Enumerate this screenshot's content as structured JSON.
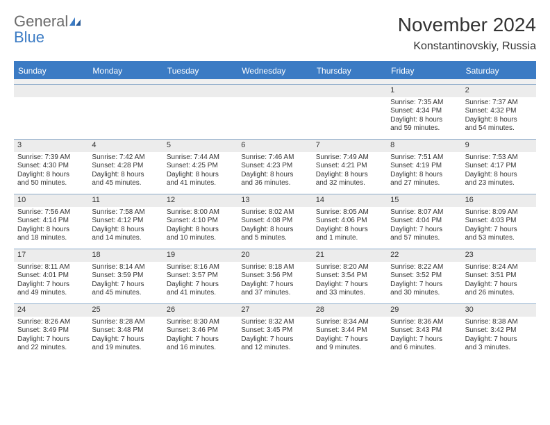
{
  "brand": {
    "text_gray": "General",
    "text_blue": "Blue"
  },
  "header": {
    "month_title": "November 2024",
    "location": "Konstantinovskiy, Russia"
  },
  "colors": {
    "header_bg": "#3b7bc4",
    "row_rule": "#8aa9c9",
    "cell_num_bg": "#ececec",
    "text": "#333333",
    "logo_gray": "#6b6b6b",
    "logo_blue": "#3b7bc4",
    "background": "#ffffff"
  },
  "typography": {
    "month_title_fontsize": 28,
    "location_fontsize": 16,
    "day_header_fontsize": 12,
    "cell_fontsize": 10,
    "font_family": "Arial"
  },
  "day_names": [
    "Sunday",
    "Monday",
    "Tuesday",
    "Wednesday",
    "Thursday",
    "Friday",
    "Saturday"
  ],
  "weeks": [
    [
      {
        "empty": true
      },
      {
        "empty": true
      },
      {
        "empty": true
      },
      {
        "empty": true
      },
      {
        "empty": true
      },
      {
        "num": "1",
        "sunrise": "Sunrise: 7:35 AM",
        "sunset": "Sunset: 4:34 PM",
        "day1": "Daylight: 8 hours",
        "day2": "and 59 minutes."
      },
      {
        "num": "2",
        "sunrise": "Sunrise: 7:37 AM",
        "sunset": "Sunset: 4:32 PM",
        "day1": "Daylight: 8 hours",
        "day2": "and 54 minutes."
      }
    ],
    [
      {
        "num": "3",
        "sunrise": "Sunrise: 7:39 AM",
        "sunset": "Sunset: 4:30 PM",
        "day1": "Daylight: 8 hours",
        "day2": "and 50 minutes."
      },
      {
        "num": "4",
        "sunrise": "Sunrise: 7:42 AM",
        "sunset": "Sunset: 4:28 PM",
        "day1": "Daylight: 8 hours",
        "day2": "and 45 minutes."
      },
      {
        "num": "5",
        "sunrise": "Sunrise: 7:44 AM",
        "sunset": "Sunset: 4:25 PM",
        "day1": "Daylight: 8 hours",
        "day2": "and 41 minutes."
      },
      {
        "num": "6",
        "sunrise": "Sunrise: 7:46 AM",
        "sunset": "Sunset: 4:23 PM",
        "day1": "Daylight: 8 hours",
        "day2": "and 36 minutes."
      },
      {
        "num": "7",
        "sunrise": "Sunrise: 7:49 AM",
        "sunset": "Sunset: 4:21 PM",
        "day1": "Daylight: 8 hours",
        "day2": "and 32 minutes."
      },
      {
        "num": "8",
        "sunrise": "Sunrise: 7:51 AM",
        "sunset": "Sunset: 4:19 PM",
        "day1": "Daylight: 8 hours",
        "day2": "and 27 minutes."
      },
      {
        "num": "9",
        "sunrise": "Sunrise: 7:53 AM",
        "sunset": "Sunset: 4:17 PM",
        "day1": "Daylight: 8 hours",
        "day2": "and 23 minutes."
      }
    ],
    [
      {
        "num": "10",
        "sunrise": "Sunrise: 7:56 AM",
        "sunset": "Sunset: 4:14 PM",
        "day1": "Daylight: 8 hours",
        "day2": "and 18 minutes."
      },
      {
        "num": "11",
        "sunrise": "Sunrise: 7:58 AM",
        "sunset": "Sunset: 4:12 PM",
        "day1": "Daylight: 8 hours",
        "day2": "and 14 minutes."
      },
      {
        "num": "12",
        "sunrise": "Sunrise: 8:00 AM",
        "sunset": "Sunset: 4:10 PM",
        "day1": "Daylight: 8 hours",
        "day2": "and 10 minutes."
      },
      {
        "num": "13",
        "sunrise": "Sunrise: 8:02 AM",
        "sunset": "Sunset: 4:08 PM",
        "day1": "Daylight: 8 hours",
        "day2": "and 5 minutes."
      },
      {
        "num": "14",
        "sunrise": "Sunrise: 8:05 AM",
        "sunset": "Sunset: 4:06 PM",
        "day1": "Daylight: 8 hours",
        "day2": "and 1 minute."
      },
      {
        "num": "15",
        "sunrise": "Sunrise: 8:07 AM",
        "sunset": "Sunset: 4:04 PM",
        "day1": "Daylight: 7 hours",
        "day2": "and 57 minutes."
      },
      {
        "num": "16",
        "sunrise": "Sunrise: 8:09 AM",
        "sunset": "Sunset: 4:03 PM",
        "day1": "Daylight: 7 hours",
        "day2": "and 53 minutes."
      }
    ],
    [
      {
        "num": "17",
        "sunrise": "Sunrise: 8:11 AM",
        "sunset": "Sunset: 4:01 PM",
        "day1": "Daylight: 7 hours",
        "day2": "and 49 minutes."
      },
      {
        "num": "18",
        "sunrise": "Sunrise: 8:14 AM",
        "sunset": "Sunset: 3:59 PM",
        "day1": "Daylight: 7 hours",
        "day2": "and 45 minutes."
      },
      {
        "num": "19",
        "sunrise": "Sunrise: 8:16 AM",
        "sunset": "Sunset: 3:57 PM",
        "day1": "Daylight: 7 hours",
        "day2": "and 41 minutes."
      },
      {
        "num": "20",
        "sunrise": "Sunrise: 8:18 AM",
        "sunset": "Sunset: 3:56 PM",
        "day1": "Daylight: 7 hours",
        "day2": "and 37 minutes."
      },
      {
        "num": "21",
        "sunrise": "Sunrise: 8:20 AM",
        "sunset": "Sunset: 3:54 PM",
        "day1": "Daylight: 7 hours",
        "day2": "and 33 minutes."
      },
      {
        "num": "22",
        "sunrise": "Sunrise: 8:22 AM",
        "sunset": "Sunset: 3:52 PM",
        "day1": "Daylight: 7 hours",
        "day2": "and 30 minutes."
      },
      {
        "num": "23",
        "sunrise": "Sunrise: 8:24 AM",
        "sunset": "Sunset: 3:51 PM",
        "day1": "Daylight: 7 hours",
        "day2": "and 26 minutes."
      }
    ],
    [
      {
        "num": "24",
        "sunrise": "Sunrise: 8:26 AM",
        "sunset": "Sunset: 3:49 PM",
        "day1": "Daylight: 7 hours",
        "day2": "and 22 minutes."
      },
      {
        "num": "25",
        "sunrise": "Sunrise: 8:28 AM",
        "sunset": "Sunset: 3:48 PM",
        "day1": "Daylight: 7 hours",
        "day2": "and 19 minutes."
      },
      {
        "num": "26",
        "sunrise": "Sunrise: 8:30 AM",
        "sunset": "Sunset: 3:46 PM",
        "day1": "Daylight: 7 hours",
        "day2": "and 16 minutes."
      },
      {
        "num": "27",
        "sunrise": "Sunrise: 8:32 AM",
        "sunset": "Sunset: 3:45 PM",
        "day1": "Daylight: 7 hours",
        "day2": "and 12 minutes."
      },
      {
        "num": "28",
        "sunrise": "Sunrise: 8:34 AM",
        "sunset": "Sunset: 3:44 PM",
        "day1": "Daylight: 7 hours",
        "day2": "and 9 minutes."
      },
      {
        "num": "29",
        "sunrise": "Sunrise: 8:36 AM",
        "sunset": "Sunset: 3:43 PM",
        "day1": "Daylight: 7 hours",
        "day2": "and 6 minutes."
      },
      {
        "num": "30",
        "sunrise": "Sunrise: 8:38 AM",
        "sunset": "Sunset: 3:42 PM",
        "day1": "Daylight: 7 hours",
        "day2": "and 3 minutes."
      }
    ]
  ]
}
